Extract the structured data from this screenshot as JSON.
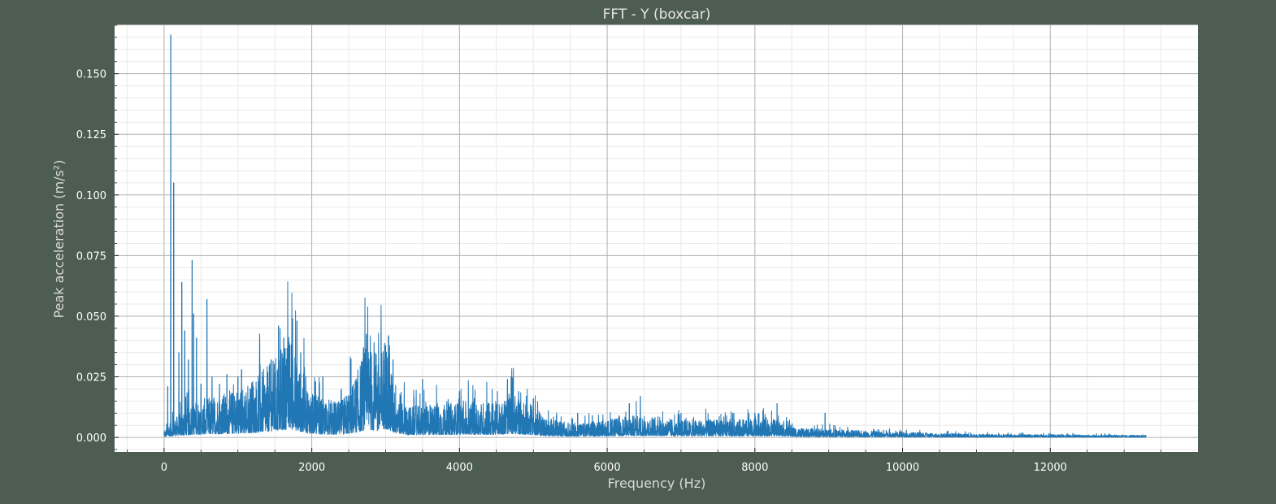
{
  "colors": {
    "background": "#4d5d52",
    "plot_area": "#ffffff",
    "series": "#2176b4",
    "major_grid": "#b0b0b0",
    "minor_grid": "#e9e9e9"
  },
  "chart_data": {
    "type": "line",
    "title": "FFT - Y (boxcar)",
    "xlabel": "Frequency (Hz)",
    "ylabel": "Peak acceleration (m/s²)",
    "xlim": [
      -670,
      14000
    ],
    "ylim": [
      -0.006,
      0.17
    ],
    "x_ticks": [
      0,
      2000,
      4000,
      6000,
      8000,
      10000,
      12000
    ],
    "x_tick_labels": [
      "0",
      "2000",
      "4000",
      "6000",
      "8000",
      "10000",
      "12000"
    ],
    "y_ticks": [
      0.0,
      0.025,
      0.05,
      0.075,
      0.1,
      0.125,
      0.15
    ],
    "y_tick_labels": [
      "0.000",
      "0.025",
      "0.050",
      "0.075",
      "0.100",
      "0.125",
      "0.150"
    ],
    "grid": "major and minor",
    "legend": "none",
    "series": [
      {
        "values_note": "dense FFT magnitude spectrum, approx. 0–13300 Hz",
        "envelope": [
          [
            0,
            0.001
          ],
          [
            50,
            0.003
          ],
          [
            100,
            0.004
          ],
          [
            200,
            0.005
          ],
          [
            400,
            0.008
          ],
          [
            600,
            0.009
          ],
          [
            800,
            0.01
          ],
          [
            1000,
            0.011
          ],
          [
            1200,
            0.013
          ],
          [
            1400,
            0.016
          ],
          [
            1600,
            0.02
          ],
          [
            1700,
            0.024
          ],
          [
            1800,
            0.018
          ],
          [
            2000,
            0.01
          ],
          [
            2200,
            0.008
          ],
          [
            2400,
            0.008
          ],
          [
            2600,
            0.014
          ],
          [
            2750,
            0.022
          ],
          [
            2900,
            0.018
          ],
          [
            3000,
            0.024
          ],
          [
            3100,
            0.014
          ],
          [
            3300,
            0.007
          ],
          [
            3500,
            0.007
          ],
          [
            4000,
            0.008
          ],
          [
            4500,
            0.008
          ],
          [
            4700,
            0.01
          ],
          [
            5000,
            0.007
          ],
          [
            5200,
            0.004
          ],
          [
            5600,
            0.003
          ],
          [
            6000,
            0.004
          ],
          [
            6400,
            0.005
          ],
          [
            7000,
            0.004
          ],
          [
            7600,
            0.004
          ],
          [
            8000,
            0.004
          ],
          [
            8300,
            0.004
          ],
          [
            8600,
            0.002
          ],
          [
            9000,
            0.002
          ],
          [
            9500,
            0.0015
          ],
          [
            10000,
            0.0012
          ],
          [
            10500,
            0.0009
          ],
          [
            11000,
            0.0008
          ],
          [
            12000,
            0.0006
          ],
          [
            13300,
            0.0005
          ]
        ],
        "peaks": [
          [
            50,
            0.021
          ],
          [
            90,
            0.166
          ],
          [
            130,
            0.105
          ],
          [
            200,
            0.035
          ],
          [
            240,
            0.064
          ],
          [
            280,
            0.044
          ],
          [
            330,
            0.032
          ],
          [
            380,
            0.073
          ],
          [
            400,
            0.051
          ],
          [
            440,
            0.041
          ],
          [
            500,
            0.022
          ],
          [
            580,
            0.057
          ],
          [
            650,
            0.025
          ],
          [
            750,
            0.022
          ],
          [
            850,
            0.026
          ],
          [
            1000,
            0.025
          ],
          [
            1050,
            0.028
          ],
          [
            1200,
            0.023
          ],
          [
            1300,
            0.03
          ],
          [
            1450,
            0.032
          ],
          [
            1550,
            0.046
          ],
          [
            1620,
            0.041
          ],
          [
            1700,
            0.038
          ],
          [
            1740,
            0.049
          ],
          [
            1800,
            0.048
          ],
          [
            1850,
            0.035
          ],
          [
            1900,
            0.029
          ],
          [
            2050,
            0.023
          ],
          [
            2150,
            0.025
          ],
          [
            2400,
            0.02
          ],
          [
            2600,
            0.024
          ],
          [
            2700,
            0.037
          ],
          [
            2740,
            0.042
          ],
          [
            2800,
            0.035
          ],
          [
            2900,
            0.03
          ],
          [
            3000,
            0.038
          ],
          [
            3040,
            0.042
          ],
          [
            3100,
            0.032
          ],
          [
            3500,
            0.024
          ],
          [
            3700,
            0.014
          ],
          [
            4000,
            0.019
          ],
          [
            4200,
            0.016
          ],
          [
            4400,
            0.014
          ],
          [
            4650,
            0.024
          ],
          [
            4700,
            0.025
          ],
          [
            4800,
            0.019
          ],
          [
            5000,
            0.016
          ],
          [
            5600,
            0.01
          ],
          [
            5800,
            0.009
          ],
          [
            6300,
            0.014
          ],
          [
            6450,
            0.017
          ],
          [
            7000,
            0.01
          ],
          [
            7700,
            0.01
          ],
          [
            8000,
            0.01
          ],
          [
            8300,
            0.014
          ],
          [
            8950,
            0.01
          ],
          [
            10050,
            0.003
          ]
        ]
      }
    ]
  }
}
